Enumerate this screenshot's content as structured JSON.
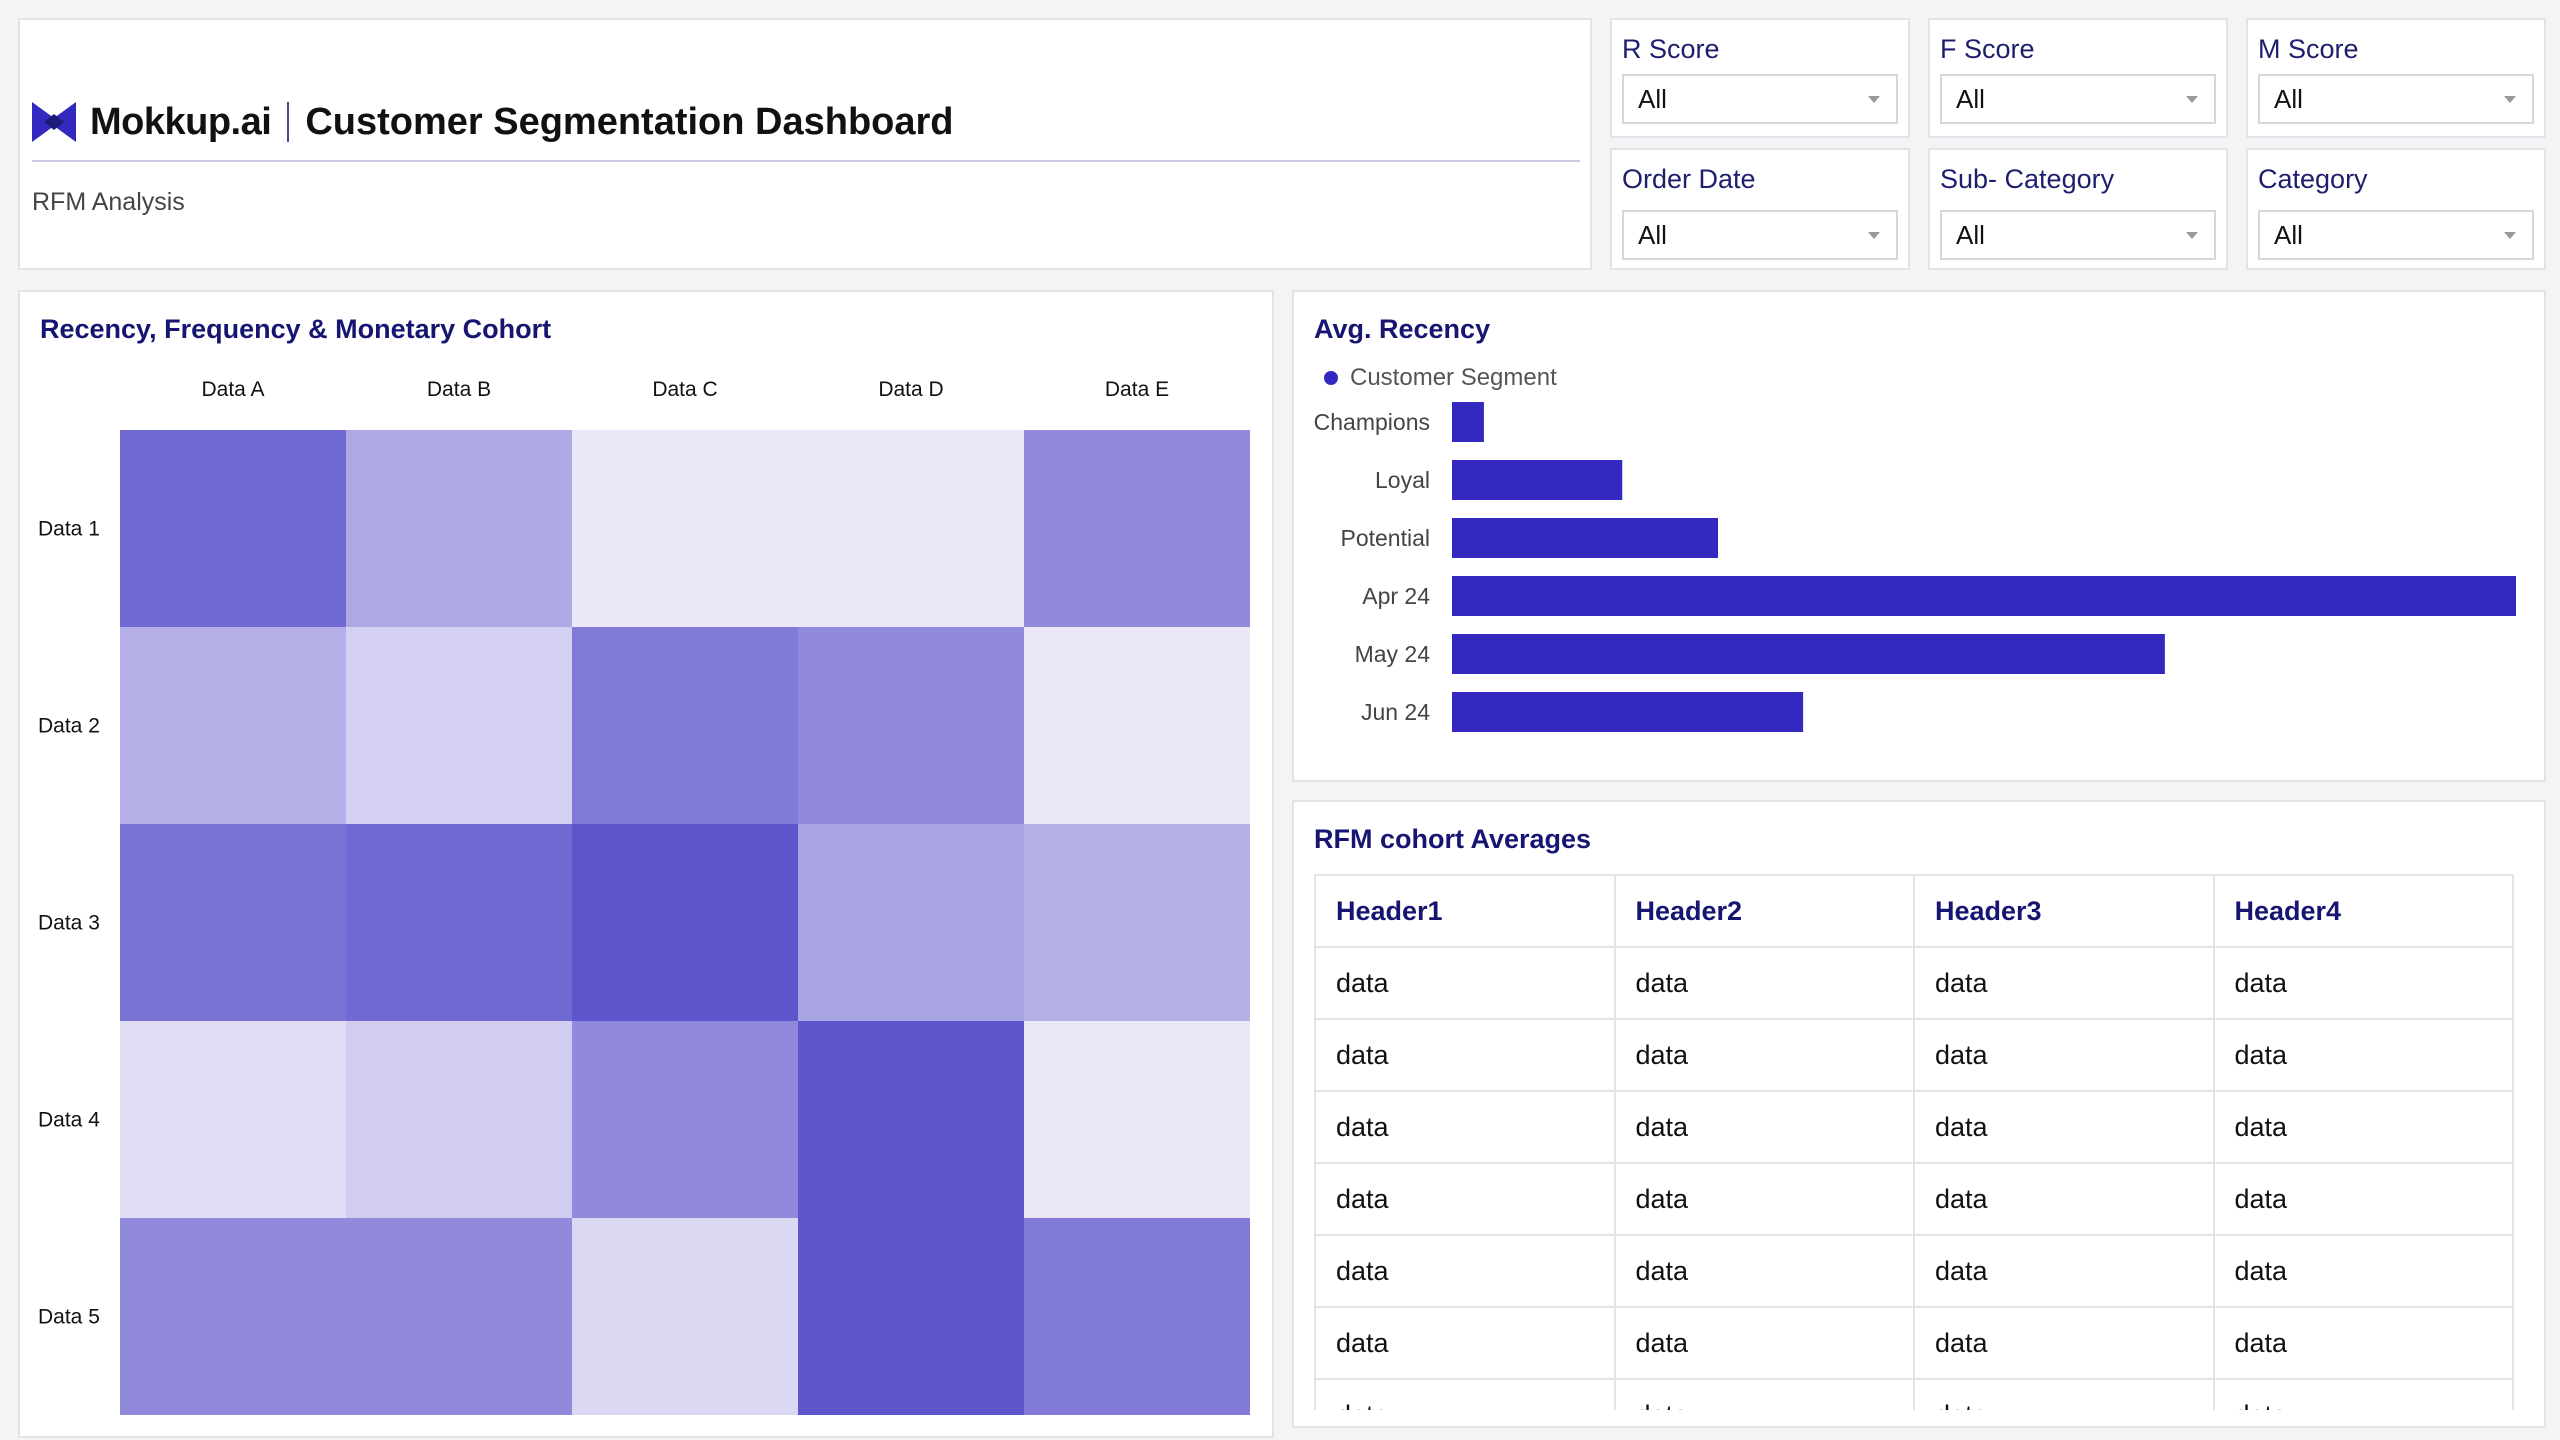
{
  "header": {
    "logo_text": "Mokkup.ai",
    "title": "Customer Segmentation Dashboard",
    "subtitle": "RFM Analysis"
  },
  "filters": [
    {
      "label": "R Score",
      "value": "All"
    },
    {
      "label": "F Score",
      "value": "All"
    },
    {
      "label": "M Score",
      "value": "All"
    },
    {
      "label": "Order Date",
      "value": "All"
    },
    {
      "label": "Sub- Category",
      "value": "All"
    },
    {
      "label": "Category",
      "value": "All"
    }
  ],
  "colors": {
    "accent": "#3329c1",
    "title": "#161672",
    "heat_base": "#5b52cc"
  },
  "chart_data": [
    {
      "type": "heatmap",
      "title": "Recency, Frequency & Monetary Cohort",
      "x_categories": [
        "Data A",
        "Data B",
        "Data C",
        "Data D",
        "Data E"
      ],
      "y_categories": [
        "Data 1",
        "Data 2",
        "Data 3",
        "Data 4",
        "Data 5"
      ],
      "values": [
        [
          0.85,
          0.45,
          0.05,
          0.05,
          0.65
        ],
        [
          0.4,
          0.2,
          0.75,
          0.65,
          0.05
        ],
        [
          0.8,
          0.85,
          0.98,
          0.48,
          0.4
        ],
        [
          0.12,
          0.22,
          0.65,
          0.98,
          0.05
        ],
        [
          0.65,
          0.65,
          0.15,
          0.98,
          0.75
        ]
      ]
    },
    {
      "type": "bar",
      "orientation": "horizontal",
      "title": "Avg. Recency",
      "legend": "Customer Segment",
      "categories": [
        "Champions",
        "Loyal",
        "Potential",
        "Apr 24",
        "May 24",
        "Jun 24"
      ],
      "values": [
        3,
        16,
        25,
        100,
        67,
        33
      ],
      "xlim": [
        0,
        100
      ]
    }
  ],
  "table": {
    "title": "RFM cohort Averages",
    "headers": [
      "Header1",
      "Header2",
      "Header3",
      "Header4"
    ],
    "rows": [
      [
        "data",
        "data",
        "data",
        "data"
      ],
      [
        "data",
        "data",
        "data",
        "data"
      ],
      [
        "data",
        "data",
        "data",
        "data"
      ],
      [
        "data",
        "data",
        "data",
        "data"
      ],
      [
        "data",
        "data",
        "data",
        "data"
      ],
      [
        "data",
        "data",
        "data",
        "data"
      ],
      [
        "data",
        "data",
        "data",
        "data"
      ]
    ]
  }
}
